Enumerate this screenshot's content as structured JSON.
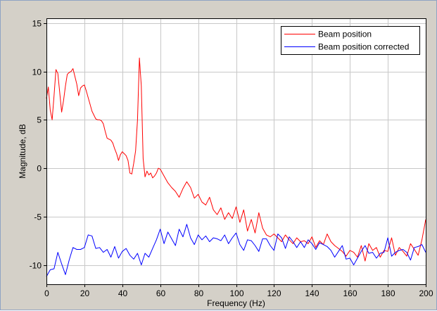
{
  "chart_data": {
    "type": "line",
    "title": "",
    "xlabel": "Frequency (Hz)",
    "ylabel": "Magnitude, dB",
    "xlim": [
      0,
      200
    ],
    "ylim": [
      -12,
      15.5
    ],
    "xticks": [
      0,
      20,
      40,
      60,
      80,
      100,
      120,
      140,
      160,
      180,
      200
    ],
    "yticks": [
      -10,
      -5,
      0,
      5,
      10,
      15
    ],
    "grid": true,
    "legend_position": "top-right",
    "series": [
      {
        "name": "Beam position",
        "color": "#ff0000",
        "x": [
          0,
          1,
          2,
          3,
          4,
          5,
          6,
          7,
          8,
          9,
          10,
          11,
          12,
          13,
          14,
          15,
          16,
          17,
          18,
          19,
          20,
          21,
          22,
          23,
          24,
          25,
          26,
          27,
          28,
          29,
          30,
          31,
          32,
          33,
          34,
          35,
          36,
          37,
          38,
          39,
          40,
          41,
          42,
          43,
          44,
          45,
          46,
          47,
          48,
          49,
          50,
          51,
          52,
          53,
          54,
          55,
          56,
          57,
          58,
          59,
          60,
          62,
          64,
          66,
          68,
          70,
          72,
          74,
          76,
          78,
          80,
          82,
          84,
          86,
          88,
          90,
          92,
          94,
          96,
          98,
          100,
          102,
          104,
          106,
          108,
          110,
          112,
          114,
          116,
          118,
          120,
          122,
          124,
          126,
          128,
          130,
          132,
          134,
          136,
          138,
          140,
          142,
          144,
          146,
          148,
          150,
          152,
          154,
          156,
          158,
          160,
          162,
          164,
          166,
          168,
          170,
          172,
          174,
          176,
          178,
          180,
          182,
          184,
          186,
          188,
          190,
          192,
          194,
          196,
          198,
          200
        ],
        "y": [
          7.2,
          8.4,
          6.0,
          5.0,
          7.5,
          10.2,
          9.8,
          7.8,
          5.8,
          7.0,
          8.5,
          9.7,
          9.9,
          10.0,
          10.3,
          9.5,
          8.7,
          7.5,
          8.3,
          8.5,
          8.6,
          8.0,
          7.3,
          6.6,
          5.9,
          5.5,
          5.1,
          5.0,
          5.0,
          4.9,
          4.6,
          3.8,
          3.1,
          3.0,
          2.9,
          2.6,
          2.0,
          1.5,
          0.8,
          1.4,
          1.7,
          1.5,
          1.3,
          0.8,
          -0.5,
          -0.6,
          0.5,
          1.8,
          5.0,
          11.4,
          8.5,
          1.0,
          -0.9,
          -0.3,
          -0.7,
          -0.5,
          -1.0,
          -0.8,
          -0.5,
          0.0,
          -0.1,
          -0.8,
          -1.5,
          -2.0,
          -2.4,
          -3.0,
          -2.1,
          -1.4,
          -2.0,
          -3.1,
          -2.7,
          -3.5,
          -3.8,
          -3.0,
          -4.3,
          -4.8,
          -4.1,
          -5.3,
          -4.6,
          -5.2,
          -4.0,
          -5.6,
          -4.3,
          -6.5,
          -5.3,
          -6.7,
          -4.6,
          -6.2,
          -6.9,
          -7.1,
          -6.8,
          -7.2,
          -7.6,
          -6.9,
          -7.4,
          -7.8,
          -7.2,
          -7.6,
          -7.5,
          -7.8,
          -7.1,
          -8.2,
          -7.5,
          -7.9,
          -6.8,
          -7.6,
          -8.0,
          -8.3,
          -8.6,
          -9.1,
          -8.5,
          -8.7,
          -9.2,
          -8.0,
          -9.6,
          -7.8,
          -8.5,
          -8.2,
          -9.2,
          -8.5,
          -8.6,
          -7.2,
          -9.0,
          -8.2,
          -8.6,
          -9.1,
          -7.8,
          -8.4,
          -9.0,
          -7.4,
          -5.3
        ]
      },
      {
        "name": "Beam position corrected",
        "color": "#0000ff",
        "x": [
          0,
          2,
          4,
          6,
          8,
          10,
          12,
          14,
          16,
          18,
          20,
          22,
          24,
          26,
          28,
          30,
          32,
          34,
          36,
          38,
          40,
          42,
          44,
          46,
          48,
          50,
          52,
          54,
          56,
          58,
          60,
          62,
          64,
          66,
          68,
          70,
          72,
          74,
          76,
          78,
          80,
          82,
          84,
          86,
          88,
          90,
          92,
          94,
          96,
          98,
          100,
          102,
          104,
          106,
          108,
          110,
          112,
          114,
          116,
          118,
          120,
          122,
          124,
          126,
          128,
          130,
          132,
          134,
          136,
          138,
          140,
          142,
          144,
          146,
          148,
          150,
          152,
          154,
          156,
          158,
          160,
          162,
          164,
          166,
          168,
          170,
          172,
          174,
          176,
          178,
          180,
          182,
          184,
          186,
          188,
          190,
          192,
          194,
          196,
          198,
          200
        ],
        "y": [
          -11.2,
          -10.5,
          -10.4,
          -8.7,
          -9.9,
          -11.0,
          -9.5,
          -8.2,
          -8.4,
          -8.4,
          -8.2,
          -6.9,
          -7.0,
          -8.3,
          -8.2,
          -8.7,
          -8.4,
          -9.2,
          -8.1,
          -9.3,
          -8.6,
          -8.3,
          -9.0,
          -9.4,
          -8.8,
          -10.0,
          -8.8,
          -9.2,
          -8.3,
          -7.4,
          -6.3,
          -7.8,
          -6.6,
          -7.3,
          -8.0,
          -6.3,
          -7.1,
          -5.8,
          -7.2,
          -7.9,
          -6.9,
          -7.4,
          -7.0,
          -7.6,
          -7.2,
          -7.3,
          -7.5,
          -6.9,
          -7.8,
          -7.2,
          -6.7,
          -7.9,
          -8.5,
          -7.4,
          -7.5,
          -8.0,
          -8.6,
          -7.3,
          -7.3,
          -8.0,
          -8.5,
          -6.8,
          -7.2,
          -8.3,
          -7.1,
          -7.6,
          -8.2,
          -7.6,
          -8.2,
          -7.4,
          -7.8,
          -8.4,
          -7.7,
          -7.9,
          -8.1,
          -8.5,
          -9.2,
          -8.6,
          -8.0,
          -9.4,
          -9.3,
          -10.0,
          -9.3,
          -8.6,
          -8.0,
          -8.8,
          -8.7,
          -9.3,
          -8.8,
          -8.7,
          -7.2,
          -9.1,
          -8.7,
          -8.5,
          -8.4,
          -8.7,
          -9.5,
          -8.2,
          -8.1,
          -7.9,
          -8.7
        ]
      }
    ]
  }
}
